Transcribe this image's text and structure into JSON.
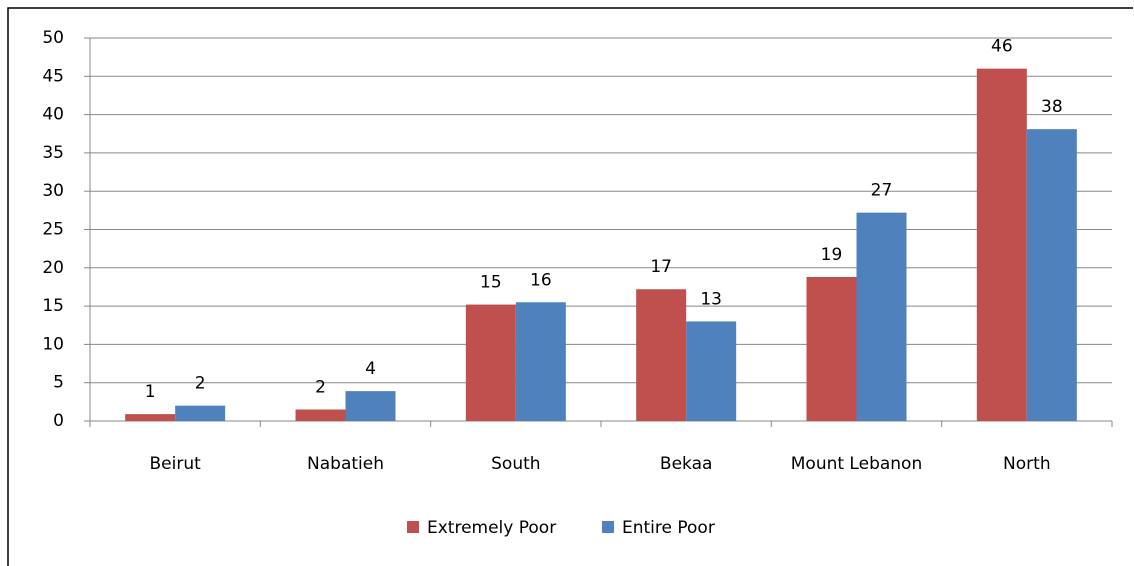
{
  "chart_data": {
    "type": "bar",
    "categories": [
      "Beirut",
      "Nabatieh",
      "South",
      "Bekaa",
      "Mount Lebanon",
      "North"
    ],
    "series": [
      {
        "name": "Extremely Poor",
        "color": "#c0504d",
        "values": [
          0.9,
          1.5,
          15.2,
          17.2,
          18.8,
          46.0
        ],
        "value_labels": [
          "1",
          "2",
          "15",
          "17",
          "19",
          "46"
        ]
      },
      {
        "name": "Entire Poor",
        "color": "#4f81bd",
        "values": [
          2.0,
          3.9,
          15.5,
          13.0,
          27.2,
          38.1
        ],
        "value_labels": [
          "2",
          "4",
          "16",
          "13",
          "27",
          "38"
        ]
      }
    ],
    "ylim": [
      0,
      50
    ],
    "yticks": [
      0,
      5,
      10,
      15,
      20,
      25,
      30,
      35,
      40,
      45,
      50
    ],
    "grid": true,
    "legend": "bottom"
  }
}
